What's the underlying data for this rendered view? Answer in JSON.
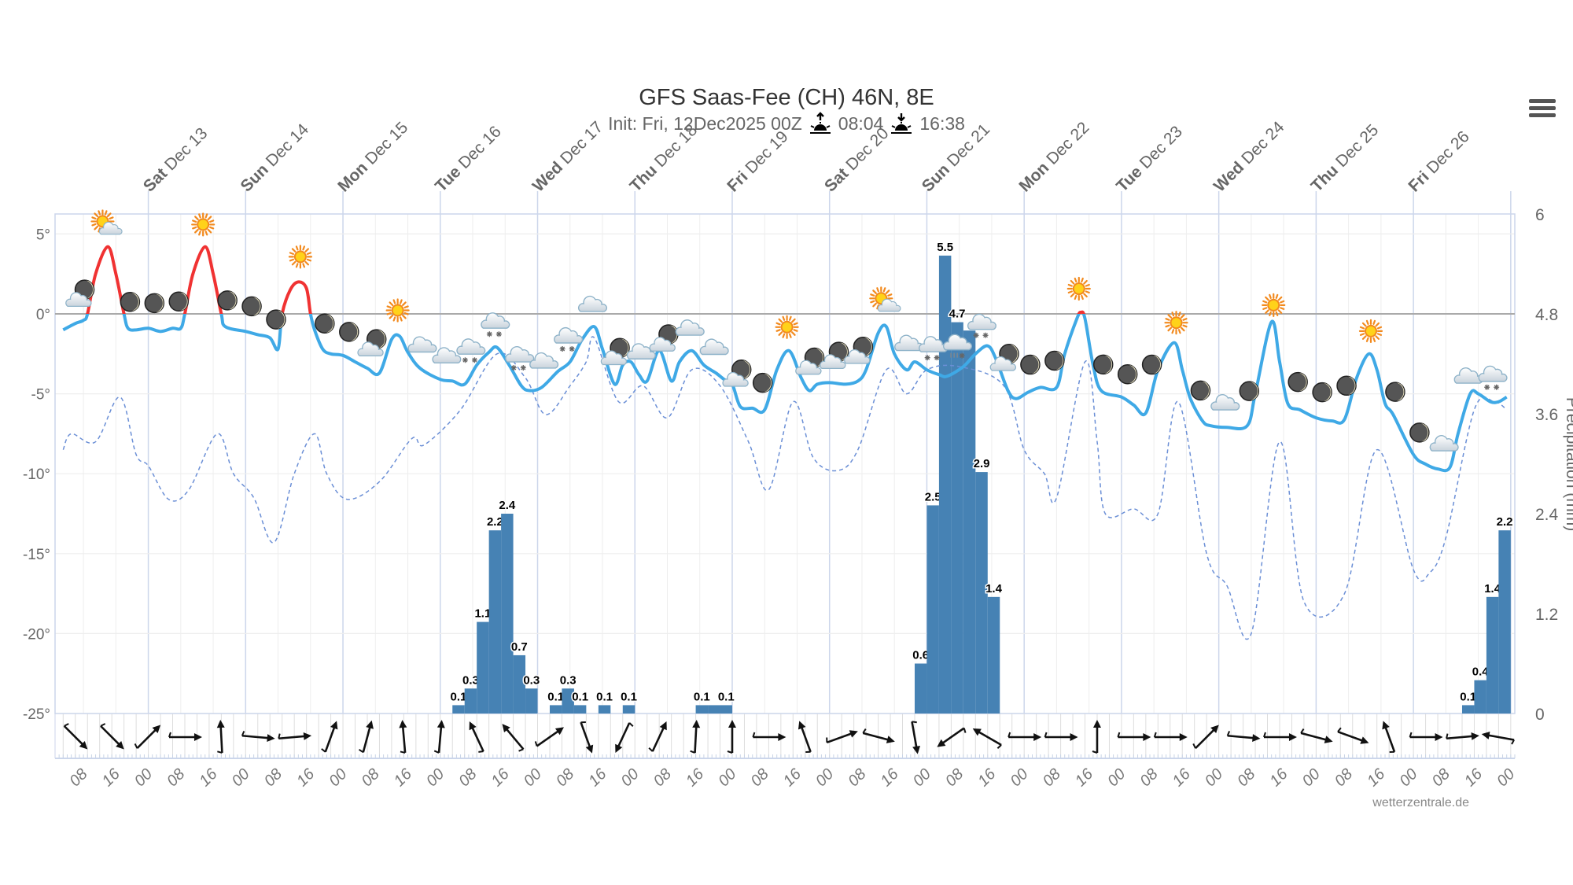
{
  "header": {
    "title": "GFS Saas-Fee (CH) 46N, 8E",
    "init": "Init: Fri, 12Dec2025 00Z",
    "sunrise": "08:04",
    "sunset": "16:38",
    "sunrise_icon": "sunrise-icon",
    "sunset_icon": "sunset-icon",
    "menu_icon": "hamburger-menu-icon"
  },
  "credit": "wetterzentrale.de",
  "chart_data": {
    "type": "line",
    "title": "GFS Saas-Fee (CH) 46N, 8E",
    "xlim": [
      "2025-12-12 01:00",
      "2025-12-27 01:00"
    ],
    "ylim": [
      -25,
      6.25
    ],
    "y2lim": [
      0,
      6
    ],
    "ylabel": "",
    "y2label": "Precipitation (mm)",
    "grid": true,
    "yticks": [
      "5°",
      "0°",
      "-5°",
      "-10°",
      "-15°",
      "-20°",
      "-25°"
    ],
    "ytick_values": [
      5,
      0,
      -5,
      -10,
      -15,
      -20,
      -25
    ],
    "y2ticks": [
      "6",
      "4.8",
      "3.6",
      "2.4",
      "1.2",
      "0"
    ],
    "y2tick_values": [
      6,
      4.8,
      3.6,
      2.4,
      1.2,
      0
    ],
    "day_labels": [
      {
        "date": "2025-12-13 00:00",
        "day": "Sat",
        "text": " Dec 13"
      },
      {
        "date": "2025-12-14 00:00",
        "day": "Sun",
        "text": " Dec 14"
      },
      {
        "date": "2025-12-15 00:00",
        "day": "Mon",
        "text": " Dec 15"
      },
      {
        "date": "2025-12-16 00:00",
        "day": "Tue",
        "text": " Dec 16"
      },
      {
        "date": "2025-12-17 00:00",
        "day": "Wed",
        "text": " Dec 17"
      },
      {
        "date": "2025-12-18 00:00",
        "day": "Thu",
        "text": " Dec 18"
      },
      {
        "date": "2025-12-19 00:00",
        "day": "Fri",
        "text": " Dec 19"
      },
      {
        "date": "2025-12-20 00:00",
        "day": "Sat",
        "text": " Dec 20"
      },
      {
        "date": "2025-12-21 00:00",
        "day": "Sun",
        "text": " Dec 21"
      },
      {
        "date": "2025-12-22 00:00",
        "day": "Mon",
        "text": " Dec 22"
      },
      {
        "date": "2025-12-23 00:00",
        "day": "Tue",
        "text": " Dec 23"
      },
      {
        "date": "2025-12-24 00:00",
        "day": "Wed",
        "text": " Dec 24"
      },
      {
        "date": "2025-12-25 00:00",
        "day": "Thu",
        "text": " Dec 25"
      },
      {
        "date": "2025-12-26 00:00",
        "day": "Fri",
        "text": " Dec 26"
      }
    ],
    "hour_tick_labels": [
      "08",
      "16",
      "00"
    ],
    "colors": {
      "temp": "#3fa9e6",
      "temp_above_zero": "#f03232",
      "dewpoint": "#6b8fd6",
      "precip": "#4682b4",
      "zero_line": "#aaaaaa"
    },
    "temperature": [
      [
        "2025-12-12 03:00",
        -1.0
      ],
      [
        "2025-12-12 06:00",
        -0.6
      ],
      [
        "2025-12-12 08:00",
        -0.4
      ],
      [
        "2025-12-12 09:00",
        0.0
      ],
      [
        "2025-12-12 11:00",
        2.5
      ],
      [
        "2025-12-12 14:00",
        4.2
      ],
      [
        "2025-12-12 16:00",
        2.5
      ],
      [
        "2025-12-12 18:00",
        0.0
      ],
      [
        "2025-12-12 19:00",
        -0.9
      ],
      [
        "2025-12-12 21:00",
        -1.0
      ],
      [
        "2025-12-13 00:00",
        -0.9
      ],
      [
        "2025-12-13 03:00",
        -1.1
      ],
      [
        "2025-12-13 06:00",
        -0.9
      ],
      [
        "2025-12-13 08:00",
        -0.9
      ],
      [
        "2025-12-13 09:00",
        0.0
      ],
      [
        "2025-12-13 11:00",
        2.5
      ],
      [
        "2025-12-13 14:00",
        4.2
      ],
      [
        "2025-12-13 16:00",
        2.5
      ],
      [
        "2025-12-13 18:00",
        0.0
      ],
      [
        "2025-12-13 19:00",
        -0.8
      ],
      [
        "2025-12-14 00:00",
        -1.1
      ],
      [
        "2025-12-14 03:00",
        -1.3
      ],
      [
        "2025-12-14 06:00",
        -1.5
      ],
      [
        "2025-12-14 08:00",
        -2.2
      ],
      [
        "2025-12-14 09:00",
        0.0
      ],
      [
        "2025-12-14 11:00",
        1.5
      ],
      [
        "2025-12-14 13:00",
        2.0
      ],
      [
        "2025-12-14 15:00",
        1.6
      ],
      [
        "2025-12-14 16:00",
        0.0
      ],
      [
        "2025-12-14 17:00",
        -1.0
      ],
      [
        "2025-12-14 19:00",
        -2.2
      ],
      [
        "2025-12-14 21:00",
        -2.5
      ],
      [
        "2025-12-15 00:00",
        -2.6
      ],
      [
        "2025-12-15 03:00",
        -3.0
      ],
      [
        "2025-12-15 06:00",
        -3.4
      ],
      [
        "2025-12-15 09:00",
        -3.7
      ],
      [
        "2025-12-15 12:00",
        -1.6
      ],
      [
        "2025-12-15 14:00",
        -1.4
      ],
      [
        "2025-12-15 16:00",
        -2.4
      ],
      [
        "2025-12-15 19:00",
        -3.4
      ],
      [
        "2025-12-16 00:00",
        -4.1
      ],
      [
        "2025-12-16 03:00",
        -4.2
      ],
      [
        "2025-12-16 06:00",
        -4.4
      ],
      [
        "2025-12-16 09:00",
        -3.2
      ],
      [
        "2025-12-16 12:00",
        -2.4
      ],
      [
        "2025-12-16 14:00",
        -2.1
      ],
      [
        "2025-12-16 17:00",
        -3.2
      ],
      [
        "2025-12-16 20:00",
        -4.5
      ],
      [
        "2025-12-16 22:00",
        -4.8
      ],
      [
        "2025-12-17 01:00",
        -4.6
      ],
      [
        "2025-12-17 05:00",
        -3.6
      ],
      [
        "2025-12-17 08:00",
        -3.0
      ],
      [
        "2025-12-17 11:00",
        -1.6
      ],
      [
        "2025-12-17 14:00",
        -0.8
      ],
      [
        "2025-12-17 16:00",
        -2.2
      ],
      [
        "2025-12-17 19:00",
        -4.4
      ],
      [
        "2025-12-17 21:00",
        -3.2
      ],
      [
        "2025-12-17 23:00",
        -3.0
      ],
      [
        "2025-12-18 01:00",
        -3.8
      ],
      [
        "2025-12-18 03:00",
        -4.2
      ],
      [
        "2025-12-18 06:00",
        -2.3
      ],
      [
        "2025-12-18 09:00",
        -4.2
      ],
      [
        "2025-12-18 11:00",
        -3.0
      ],
      [
        "2025-12-18 14:00",
        -2.3
      ],
      [
        "2025-12-18 17:00",
        -3.2
      ],
      [
        "2025-12-18 20:00",
        -3.7
      ],
      [
        "2025-12-18 22:00",
        -4.1
      ],
      [
        "2025-12-19 00:00",
        -4.4
      ],
      [
        "2025-12-19 02:00",
        -5.8
      ],
      [
        "2025-12-19 05:00",
        -5.9
      ],
      [
        "2025-12-19 08:00",
        -6.0
      ],
      [
        "2025-12-19 11:00",
        -3.5
      ],
      [
        "2025-12-19 14:00",
        -2.3
      ],
      [
        "2025-12-19 17:00",
        -4.0
      ],
      [
        "2025-12-19 19:00",
        -4.8
      ],
      [
        "2025-12-19 21:00",
        -4.4
      ],
      [
        "2025-12-20 00:00",
        -4.3
      ],
      [
        "2025-12-20 04:00",
        -4.4
      ],
      [
        "2025-12-20 07:00",
        -4.2
      ],
      [
        "2025-12-20 09:00",
        -3.5
      ],
      [
        "2025-12-20 12:00",
        -1.2
      ],
      [
        "2025-12-20 14:00",
        -0.8
      ],
      [
        "2025-12-20 16:00",
        -2.5
      ],
      [
        "2025-12-20 19:00",
        -3.5
      ],
      [
        "2025-12-20 21:00",
        -3.0
      ],
      [
        "2025-12-21 00:00",
        -3.5
      ],
      [
        "2025-12-21 03:00",
        -3.8
      ],
      [
        "2025-12-21 05:00",
        -3.9
      ],
      [
        "2025-12-21 09:00",
        -3.3
      ],
      [
        "2025-12-21 12:00",
        -2.5
      ],
      [
        "2025-12-21 15:00",
        -2.0
      ],
      [
        "2025-12-21 17:00",
        -2.8
      ],
      [
        "2025-12-21 20:00",
        -4.8
      ],
      [
        "2025-12-21 22:00",
        -5.3
      ],
      [
        "2025-12-22 01:00",
        -4.9
      ],
      [
        "2025-12-22 04:00",
        -4.6
      ],
      [
        "2025-12-22 08:00",
        -4.6
      ],
      [
        "2025-12-22 10:00",
        -2.5
      ],
      [
        "2025-12-22 13:00",
        -0.3
      ],
      [
        "2025-12-22 14:00",
        0.1
      ],
      [
        "2025-12-22 15:00",
        -0.3
      ],
      [
        "2025-12-22 17:00",
        -3.2
      ],
      [
        "2025-12-22 19:00",
        -4.8
      ],
      [
        "2025-12-23 00:00",
        -5.2
      ],
      [
        "2025-12-23 03:00",
        -5.7
      ],
      [
        "2025-12-23 06:00",
        -6.2
      ],
      [
        "2025-12-23 09:00",
        -3.5
      ],
      [
        "2025-12-23 13:00",
        -1.8
      ],
      [
        "2025-12-23 15:00",
        -3.5
      ],
      [
        "2025-12-23 17:00",
        -5.3
      ],
      [
        "2025-12-23 20:00",
        -6.7
      ],
      [
        "2025-12-23 22:00",
        -7.0
      ],
      [
        "2025-12-24 02:00",
        -7.1
      ],
      [
        "2025-12-24 07:00",
        -7.0
      ],
      [
        "2025-12-24 09:00",
        -5.0
      ],
      [
        "2025-12-24 13:00",
        -0.5
      ],
      [
        "2025-12-24 15:00",
        -3.0
      ],
      [
        "2025-12-24 17:00",
        -5.6
      ],
      [
        "2025-12-24 20:00",
        -6.0
      ],
      [
        "2025-12-25 00:00",
        -6.5
      ],
      [
        "2025-12-25 04:00",
        -6.7
      ],
      [
        "2025-12-25 07:00",
        -6.6
      ],
      [
        "2025-12-25 10:00",
        -4.0
      ],
      [
        "2025-12-25 13:00",
        -2.5
      ],
      [
        "2025-12-25 15:00",
        -3.5
      ],
      [
        "2025-12-25 17:00",
        -5.6
      ],
      [
        "2025-12-25 19:00",
        -6.3
      ],
      [
        "2025-12-26 00:00",
        -8.8
      ],
      [
        "2025-12-26 03:00",
        -9.4
      ],
      [
        "2025-12-26 06:00",
        -9.7
      ],
      [
        "2025-12-26 09:00",
        -9.6
      ],
      [
        "2025-12-26 11:00",
        -7.5
      ],
      [
        "2025-12-26 14:00",
        -5.0
      ],
      [
        "2025-12-26 16:00",
        -5.0
      ],
      [
        "2025-12-26 19:00",
        -5.5
      ],
      [
        "2025-12-26 21:00",
        -5.5
      ],
      [
        "2025-12-26 23:00",
        -5.2
      ]
    ],
    "dewpoint": [
      [
        "2025-12-12 03:00",
        -8.5
      ],
      [
        "2025-12-12 05:00",
        -7.5
      ],
      [
        "2025-12-12 11:00",
        -8.0
      ],
      [
        "2025-12-12 17:00",
        -5.2
      ],
      [
        "2025-12-12 21:00",
        -8.8
      ],
      [
        "2025-12-13 00:00",
        -9.5
      ],
      [
        "2025-12-13 05:00",
        -11.6
      ],
      [
        "2025-12-13 10:00",
        -11.0
      ],
      [
        "2025-12-13 17:00",
        -7.5
      ],
      [
        "2025-12-13 21:00",
        -10.0
      ],
      [
        "2025-12-14 02:00",
        -11.5
      ],
      [
        "2025-12-14 07:00",
        -14.3
      ],
      [
        "2025-12-14 12:00",
        -10.0
      ],
      [
        "2025-12-14 17:00",
        -7.5
      ],
      [
        "2025-12-14 20:00",
        -10.0
      ],
      [
        "2025-12-15 01:00",
        -11.6
      ],
      [
        "2025-12-15 09:00",
        -10.5
      ],
      [
        "2025-12-15 17:00",
        -7.8
      ],
      [
        "2025-12-15 20:00",
        -8.2
      ],
      [
        "2025-12-16 05:00",
        -6.0
      ],
      [
        "2025-12-16 14:00",
        -2.5
      ],
      [
        "2025-12-16 21:00",
        -4.0
      ],
      [
        "2025-12-17 02:00",
        -6.3
      ],
      [
        "2025-12-17 08:00",
        -4.5
      ],
      [
        "2025-12-17 12:00",
        -3.0
      ],
      [
        "2025-12-17 14:00",
        -1.5
      ],
      [
        "2025-12-17 20:00",
        -5.5
      ],
      [
        "2025-12-18 02:00",
        -4.5
      ],
      [
        "2025-12-18 08:00",
        -6.5
      ],
      [
        "2025-12-18 14:00",
        -3.5
      ],
      [
        "2025-12-18 21:00",
        -4.5
      ],
      [
        "2025-12-19 04:00",
        -8.0
      ],
      [
        "2025-12-19 09:00",
        -11.0
      ],
      [
        "2025-12-19 15:00",
        -5.5
      ],
      [
        "2025-12-19 20:00",
        -9.0
      ],
      [
        "2025-12-20 02:00",
        -9.8
      ],
      [
        "2025-12-20 07:00",
        -8.5
      ],
      [
        "2025-12-20 14:00",
        -3.5
      ],
      [
        "2025-12-20 19:00",
        -5.0
      ],
      [
        "2025-12-21 00:00",
        -3.5
      ],
      [
        "2025-12-21 08:00",
        -3.3
      ],
      [
        "2025-12-21 19:00",
        -4.5
      ],
      [
        "2025-12-21 24:00",
        -8.5
      ],
      [
        "2025-12-22 05:00",
        -10.0
      ],
      [
        "2025-12-22 08:00",
        -11.5
      ],
      [
        "2025-12-22 15:00",
        -3.0
      ],
      [
        "2025-12-22 18:00",
        -8.0
      ],
      [
        "2025-12-22 20:00",
        -12.5
      ],
      [
        "2025-12-23 03:00",
        -12.2
      ],
      [
        "2025-12-23 09:00",
        -12.5
      ],
      [
        "2025-12-23 14:00",
        -5.5
      ],
      [
        "2025-12-23 21:00",
        -15.0
      ],
      [
        "2025-12-24 02:00",
        -17.0
      ],
      [
        "2025-12-24 08:00",
        -20.0
      ],
      [
        "2025-12-24 15:00",
        -8.0
      ],
      [
        "2025-12-24 21:00",
        -18.0
      ],
      [
        "2025-12-25 07:00",
        -17.5
      ],
      [
        "2025-12-25 15:00",
        -8.5
      ],
      [
        "2025-12-26 00:00",
        -16.0
      ],
      [
        "2025-12-26 04:00",
        -16.2
      ],
      [
        "2025-12-26 08:00",
        -14.0
      ],
      [
        "2025-12-26 15:00",
        -6.0
      ],
      [
        "2025-12-26 20:00",
        -5.5
      ],
      [
        "2025-12-26 23:00",
        -6.0
      ]
    ],
    "precipitation_3h": [
      {
        "end": "2025-12-16 06:00",
        "value": 0.1,
        "label": "0.1"
      },
      {
        "end": "2025-12-16 09:00",
        "value": 0.3,
        "label": "0.3"
      },
      {
        "end": "2025-12-16 12:00",
        "value": 1.1,
        "label": "1.1"
      },
      {
        "end": "2025-12-16 15:00",
        "value": 2.2,
        "label": "2.2"
      },
      {
        "end": "2025-12-16 18:00",
        "value": 2.4,
        "label": "2.4"
      },
      {
        "end": "2025-12-16 21:00",
        "value": 0.7,
        "label": "0.7"
      },
      {
        "end": "2025-12-17 00:00",
        "value": 0.3,
        "label": "0.3"
      },
      {
        "end": "2025-12-17 06:00",
        "value": 0.1,
        "label": "0.1"
      },
      {
        "end": "2025-12-17 09:00",
        "value": 0.3,
        "label": "0.3"
      },
      {
        "end": "2025-12-17 12:00",
        "value": 0.1,
        "label": "0.1"
      },
      {
        "end": "2025-12-17 18:00",
        "value": 0.1,
        "label": "0.1"
      },
      {
        "end": "2025-12-18 00:00",
        "value": 0.1,
        "label": "0.1"
      },
      {
        "end": "2025-12-18 18:00",
        "value": 0.1,
        "label": "0.1"
      },
      {
        "end": "2025-12-18 21:00",
        "value": 0.1,
        "label": ""
      },
      {
        "end": "2025-12-19 00:00",
        "value": 0.1,
        "label": "0.1"
      },
      {
        "end": "2025-12-21 00:00",
        "value": 0.6,
        "label": "0.6"
      },
      {
        "end": "2025-12-21 03:00",
        "value": 2.5,
        "label": "2.5"
      },
      {
        "end": "2025-12-21 06:00",
        "value": 5.5,
        "label": "5.5"
      },
      {
        "end": "2025-12-21 09:00",
        "value": 4.7,
        "label": "4.7"
      },
      {
        "end": "2025-12-21 12:00",
        "value": 4.6,
        "label": ""
      },
      {
        "end": "2025-12-21 15:00",
        "value": 2.9,
        "label": "2.9"
      },
      {
        "end": "2025-12-21 18:00",
        "value": 1.4,
        "label": "1.4"
      },
      {
        "end": "2025-12-26 15:00",
        "value": 0.1,
        "label": "0.1"
      },
      {
        "end": "2025-12-26 18:00",
        "value": 0.4,
        "label": "0.4"
      },
      {
        "end": "2025-12-26 21:00",
        "value": 1.4,
        "label": "1.4"
      },
      {
        "end": "2025-12-27 00:00",
        "value": 2.2,
        "label": "2.2"
      }
    ],
    "weather_symbols": {
      "start": "2025-12-12 07:30",
      "step_hours": 6,
      "icons": [
        "moon-cloud",
        "sun-cloud",
        "moon",
        "moon",
        "moon",
        "sun",
        "moon",
        "moon",
        "moon",
        "sun",
        "moon",
        "moon",
        "moon-cloud",
        "sun",
        "cloud",
        "cloud",
        "snow-cloud",
        "snow-cloud",
        "snow-cloud",
        "cloud",
        "snow-cloud",
        "cloud",
        "moon-cloud",
        "cloud",
        "moon-cloud",
        "cloud",
        "cloud",
        "moon-cloud",
        "moon",
        "sun",
        "moon-cloud",
        "moon-cloud",
        "moon-cloud",
        "sun-cloud",
        "cloud",
        "snow-cloud",
        "sleet-cloud",
        "snow-cloud",
        "moon-cloud",
        "moon",
        "moon",
        "sun",
        "moon",
        "moon",
        "moon",
        "sun",
        "moon",
        "cloud",
        "moon",
        "sun",
        "moon",
        "moon",
        "moon",
        "sun",
        "moon",
        "moon",
        "cloud",
        "cloud",
        "snow-cloud"
      ]
    },
    "wind": {
      "start": "2025-12-12 06:00",
      "step_hours": 9,
      "direction_deg": [
        135,
        135,
        45,
        90,
        -3,
        95,
        85,
        20,
        15,
        -5,
        5,
        -25,
        -40,
        55,
        160,
        205,
        25,
        3,
        0,
        90,
        -20,
        70,
        105,
        170,
        235,
        300,
        90,
        90,
        0,
        90,
        90,
        45,
        95,
        90,
        105,
        110,
        -20,
        90,
        85,
        -80
      ]
    }
  }
}
